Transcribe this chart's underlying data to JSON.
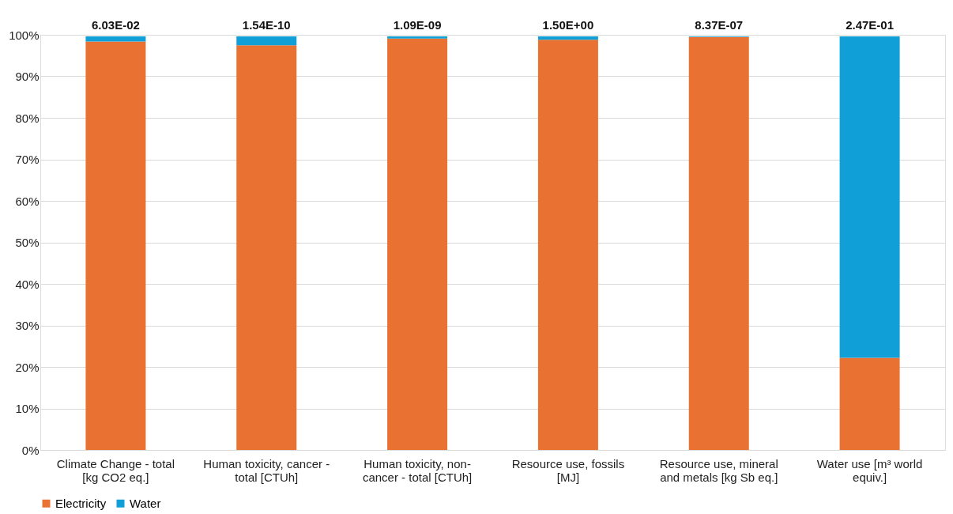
{
  "chart_data": {
    "type": "bar",
    "stacked": true,
    "categories": [
      "Climate Change - total [kg CO2 eq.]",
      "Human toxicity, cancer - total [CTUh]",
      "Human toxicity, non-cancer - total [CTUh]",
      "Resource use, fossils [MJ]",
      "Resource use, mineral and metals [kg Sb eq.]",
      "Water use [m³ world equiv.]"
    ],
    "series": [
      {
        "name": "Electricity",
        "color": "#e97132",
        "values": [
          98.4,
          97.5,
          99.1,
          98.8,
          99.5,
          22.2
        ]
      },
      {
        "name": "Water",
        "color": "#119fd8",
        "values": [
          1.2,
          2.1,
          0.5,
          0.8,
          0.1,
          77.4
        ]
      }
    ],
    "annotations": [
      {
        "text": "6.03E-02",
        "x": "Climate Change - total [kg CO2 eq.]",
        "y": 99.6
      },
      {
        "text": "1.54E-10",
        "x": "Human toxicity, cancer - total [CTUh]",
        "y": 99.6
      },
      {
        "text": "1.09E-09",
        "x": "Human toxicity, non-cancer - total [CTUh]",
        "y": 99.6
      },
      {
        "text": "1.50E+00",
        "x": "Resource use, fossils [MJ]",
        "y": 99.6
      },
      {
        "text": "8.37E-07",
        "x": "Resource use, mineral and metals [kg Sb eq.]",
        "y": 99.6
      },
      {
        "text": "2.47E-01",
        "x": "Water use [m³ world equiv.]",
        "y": 99.6
      }
    ],
    "ylim": [
      0,
      100
    ],
    "yticks": [
      {
        "value": 0,
        "label": "0%"
      },
      {
        "value": 10,
        "label": "10%"
      },
      {
        "value": 20,
        "label": "20%"
      },
      {
        "value": 30,
        "label": "30%"
      },
      {
        "value": 40,
        "label": "40%"
      },
      {
        "value": 50,
        "label": "50%"
      },
      {
        "value": 60,
        "label": "60%"
      },
      {
        "value": 70,
        "label": "70%"
      },
      {
        "value": 80,
        "label": "80%"
      },
      {
        "value": 90,
        "label": "90%"
      },
      {
        "value": 100,
        "label": "100%"
      }
    ],
    "grid": "y",
    "legend": "bottom"
  }
}
